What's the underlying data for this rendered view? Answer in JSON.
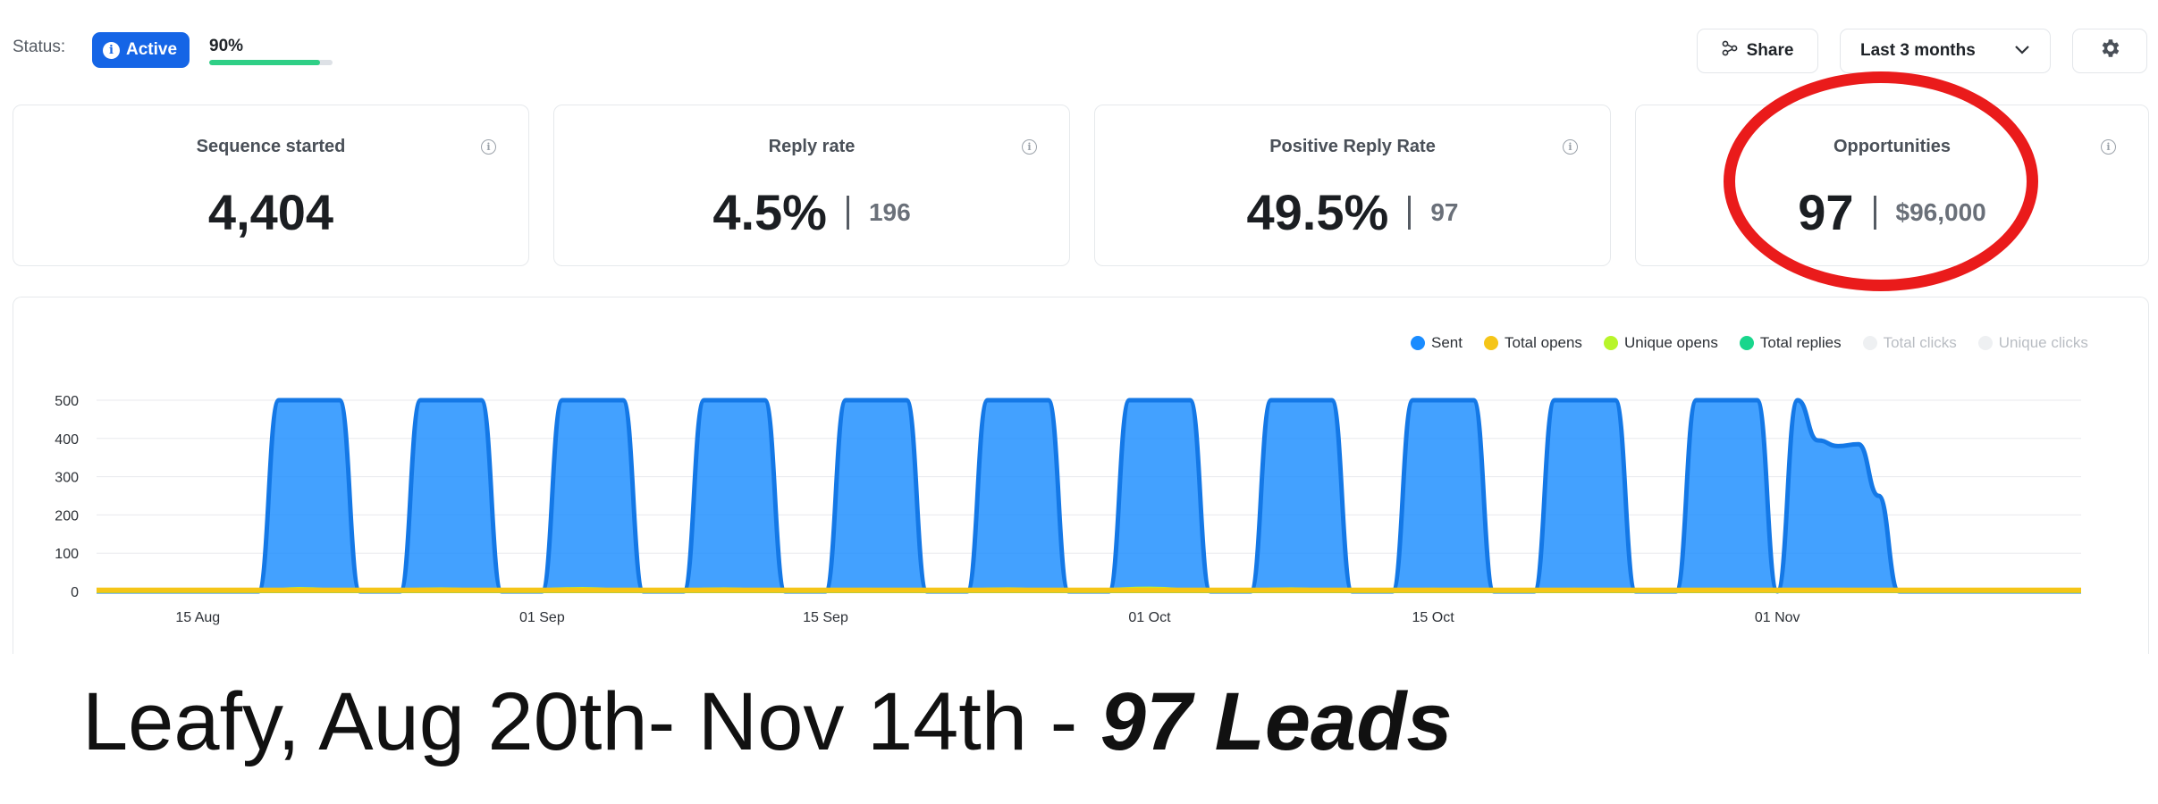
{
  "status": {
    "label": "Status:",
    "badge": "Active",
    "progress_text": "90%",
    "progress_value": 0.9
  },
  "toolbar": {
    "share_label": "Share",
    "range_label": "Last 3 months"
  },
  "cards": [
    {
      "title": "Sequence started",
      "value": "4,404",
      "sub": ""
    },
    {
      "title": "Reply rate",
      "value": "4.5%",
      "sub": "196"
    },
    {
      "title": "Positive Reply Rate",
      "value": "49.5%",
      "sub": "97"
    },
    {
      "title": "Opportunities",
      "value": "97",
      "sub": "$96,000"
    }
  ],
  "legend": [
    {
      "label": "Sent",
      "color": "#1a8cff",
      "muted": false
    },
    {
      "label": "Total opens",
      "color": "#f5c518",
      "muted": false
    },
    {
      "label": "Unique opens",
      "color": "#b8f52a",
      "muted": false
    },
    {
      "label": "Total replies",
      "color": "#18d68c",
      "muted": false
    },
    {
      "label": "Total clicks",
      "color": "#eef0f2",
      "muted": true
    },
    {
      "label": "Unique clicks",
      "color": "#eef0f2",
      "muted": true
    }
  ],
  "chart_data": {
    "type": "area",
    "ylim": [
      0,
      500
    ],
    "yticks": [
      0,
      100,
      200,
      300,
      400,
      500
    ],
    "xlim": [
      "2024-08-10",
      "2024-11-16"
    ],
    "xticks": [
      {
        "date": "2024-08-15",
        "label": "15 Aug"
      },
      {
        "date": "2024-09-01",
        "label": "01 Sep"
      },
      {
        "date": "2024-09-15",
        "label": "15 Sep"
      },
      {
        "date": "2024-10-01",
        "label": "01 Oct"
      },
      {
        "date": "2024-10-15",
        "label": "15 Oct"
      },
      {
        "date": "2024-11-01",
        "label": "01 Nov"
      }
    ],
    "series": [
      {
        "name": "Sent",
        "color": "#1a8cff",
        "points": [
          [
            "2024-08-10",
            0
          ],
          [
            "2024-08-18",
            0
          ],
          [
            "2024-08-19",
            500
          ],
          [
            "2024-08-22",
            500
          ],
          [
            "2024-08-23",
            0
          ],
          [
            "2024-08-25",
            0
          ],
          [
            "2024-08-26",
            500
          ],
          [
            "2024-08-29",
            500
          ],
          [
            "2024-08-30",
            0
          ],
          [
            "2024-09-01",
            0
          ],
          [
            "2024-09-02",
            500
          ],
          [
            "2024-09-05",
            500
          ],
          [
            "2024-09-06",
            0
          ],
          [
            "2024-09-08",
            0
          ],
          [
            "2024-09-09",
            500
          ],
          [
            "2024-09-12",
            500
          ],
          [
            "2024-09-13",
            0
          ],
          [
            "2024-09-15",
            0
          ],
          [
            "2024-09-16",
            500
          ],
          [
            "2024-09-19",
            500
          ],
          [
            "2024-09-20",
            0
          ],
          [
            "2024-09-22",
            0
          ],
          [
            "2024-09-23",
            500
          ],
          [
            "2024-09-26",
            500
          ],
          [
            "2024-09-27",
            0
          ],
          [
            "2024-09-29",
            0
          ],
          [
            "2024-09-30",
            500
          ],
          [
            "2024-10-03",
            500
          ],
          [
            "2024-10-04",
            0
          ],
          [
            "2024-10-06",
            0
          ],
          [
            "2024-10-07",
            500
          ],
          [
            "2024-10-10",
            500
          ],
          [
            "2024-10-11",
            0
          ],
          [
            "2024-10-13",
            0
          ],
          [
            "2024-10-14",
            500
          ],
          [
            "2024-10-17",
            500
          ],
          [
            "2024-10-18",
            0
          ],
          [
            "2024-10-20",
            0
          ],
          [
            "2024-10-21",
            500
          ],
          [
            "2024-10-24",
            500
          ],
          [
            "2024-10-25",
            0
          ],
          [
            "2024-10-27",
            0
          ],
          [
            "2024-10-28",
            500
          ],
          [
            "2024-10-31",
            500
          ],
          [
            "2024-11-01",
            0
          ],
          [
            "2024-11-02",
            500
          ],
          [
            "2024-11-03",
            395
          ],
          [
            "2024-11-04",
            380
          ],
          [
            "2024-11-05",
            385
          ],
          [
            "2024-11-06",
            250
          ],
          [
            "2024-11-07",
            0
          ],
          [
            "2024-11-16",
            0
          ]
        ]
      },
      {
        "name": "Total opens",
        "color": "#f5c518",
        "points": [
          [
            "2024-08-10",
            3
          ],
          [
            "2024-11-16",
            3
          ]
        ]
      },
      {
        "name": "Unique opens",
        "color": "#b8f52a",
        "points": [
          [
            "2024-08-10",
            0
          ],
          [
            "2024-08-18",
            0
          ],
          [
            "2024-08-20",
            7
          ],
          [
            "2024-08-23",
            0
          ],
          [
            "2024-08-27",
            6
          ],
          [
            "2024-08-30",
            0
          ],
          [
            "2024-09-03",
            7
          ],
          [
            "2024-09-06",
            0
          ],
          [
            "2024-09-10",
            6
          ],
          [
            "2024-09-13",
            0
          ],
          [
            "2024-09-17",
            5
          ],
          [
            "2024-09-20",
            0
          ],
          [
            "2024-09-24",
            6
          ],
          [
            "2024-09-27",
            0
          ],
          [
            "2024-10-01",
            8
          ],
          [
            "2024-10-04",
            0
          ],
          [
            "2024-10-08",
            6
          ],
          [
            "2024-10-11",
            0
          ],
          [
            "2024-10-15",
            5
          ],
          [
            "2024-10-18",
            0
          ],
          [
            "2024-10-22",
            5
          ],
          [
            "2024-10-25",
            0
          ],
          [
            "2024-10-29",
            5
          ],
          [
            "2024-11-01",
            0
          ],
          [
            "2024-11-04",
            5
          ],
          [
            "2024-11-07",
            0
          ],
          [
            "2024-11-16",
            0
          ]
        ]
      },
      {
        "name": "Total replies",
        "color": "#18d68c",
        "points": [
          [
            "2024-08-10",
            0
          ],
          [
            "2024-11-16",
            0
          ]
        ]
      }
    ]
  },
  "caption": {
    "text": "Leafy, Aug 20th- Nov 14th - ",
    "emphasis": "97 Leads"
  }
}
